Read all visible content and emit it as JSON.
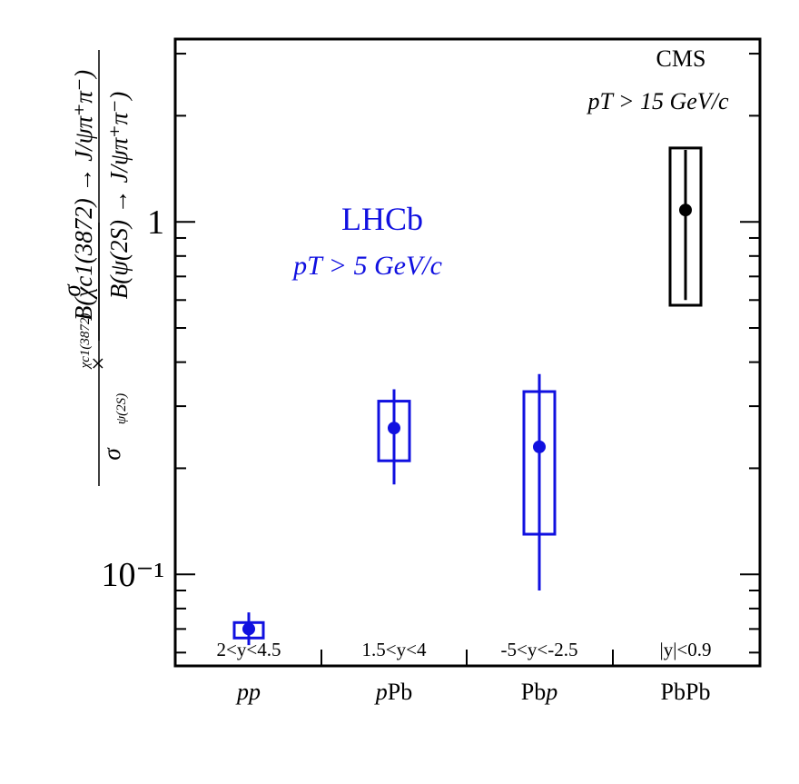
{
  "chart_data": {
    "type": "scatter",
    "title": "",
    "ylabel": {
      "numerator_left": "σ",
      "numerator_left_sub": "χc1(3872)",
      "denominator_left": "σ",
      "denominator_left_sub": "ψ(2S)",
      "times": "×",
      "numerator_right": "B(χc1(3872) → J/ψπ⁺π⁻)",
      "denominator_right": "B(ψ(2S) → J/ψπ⁺π⁻)"
    },
    "yscale": "log",
    "ylim": [
      0.055,
      3.3
    ],
    "yticks": [
      {
        "value": 1,
        "label": "1"
      },
      {
        "value": 0.1,
        "label": "10⁻¹"
      }
    ],
    "categories": [
      "pp",
      "pPb",
      "Pbp",
      "PbPb"
    ],
    "category_display": [
      {
        "pre": "",
        "italic": "pp",
        "post": ""
      },
      {
        "pre": "",
        "italic": "p",
        "post": "Pb"
      },
      {
        "pre": "Pb",
        "italic": "p",
        "post": ""
      },
      {
        "pre": "PbPb",
        "italic": "",
        "post": ""
      }
    ],
    "rapidity_ranges": [
      "2<y<4.5",
      "1.5<y<4",
      "-5<y<-2.5",
      "|y|<0.9"
    ],
    "series": [
      {
        "name": "LHCb",
        "color": "#1010e0",
        "points": [
          {
            "category": "pp",
            "value": 0.07,
            "stat_low": 0.063,
            "stat_high": 0.078,
            "syst_low": 0.066,
            "syst_high": 0.073
          },
          {
            "category": "pPb",
            "value": 0.26,
            "stat_low": 0.18,
            "stat_high": 0.335,
            "syst_low": 0.21,
            "syst_high": 0.31
          },
          {
            "category": "Pbp",
            "value": 0.23,
            "stat_low": 0.09,
            "stat_high": 0.37,
            "syst_low": 0.13,
            "syst_high": 0.33
          }
        ]
      },
      {
        "name": "CMS",
        "color": "#000000",
        "points": [
          {
            "category": "PbPb",
            "value": 1.08,
            "stat_low": 0.6,
            "stat_high": 1.6,
            "syst_low": 0.58,
            "syst_high": 1.62
          }
        ]
      }
    ],
    "annotations": {
      "lhcb_name": "LHCb",
      "lhcb_cut": "pT > 5 GeV/c",
      "cms_name": "CMS",
      "cms_cut": "pT > 15 GeV/c"
    }
  }
}
